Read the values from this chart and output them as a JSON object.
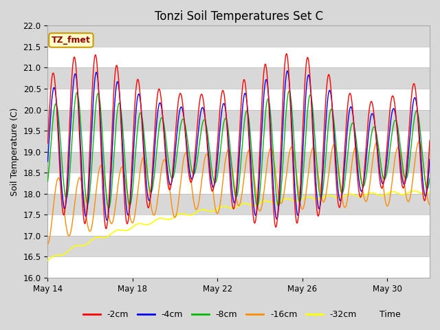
{
  "title": "Tonzi Soil Temperatures Set C",
  "ylabel": "Soil Temperature (C)",
  "xlabel": "Time",
  "annotation": "TZ_fmet",
  "ylim": [
    16.0,
    22.0
  ],
  "yticks": [
    16.0,
    16.5,
    17.0,
    17.5,
    18.0,
    18.5,
    19.0,
    19.5,
    20.0,
    20.5,
    21.0,
    21.5,
    22.0
  ],
  "xtick_days": [
    14,
    18,
    22,
    26,
    30
  ],
  "series": {
    "-2cm": {
      "color": "#FF0000",
      "lw": 1.0
    },
    "-4cm": {
      "color": "#0000FF",
      "lw": 1.0
    },
    "-8cm": {
      "color": "#00BB00",
      "lw": 1.0
    },
    "-16cm": {
      "color": "#FF8C00",
      "lw": 1.0
    },
    "-32cm": {
      "color": "#FFFF00",
      "lw": 1.2
    }
  },
  "legend_labels": [
    "-2cm",
    "-4cm",
    "-8cm",
    "-16cm",
    "-32cm"
  ],
  "legend_colors": [
    "#FF0000",
    "#0000FF",
    "#00BB00",
    "#FF8C00",
    "#FFFF00"
  ],
  "fig_bg": "#D8D8D8",
  "plot_bg": "#D8D8D8",
  "band_white": "#FFFFFF",
  "annotation_bg": "#FFFFCC",
  "annotation_border": "#CC9900",
  "annotation_text_color": "#990000"
}
